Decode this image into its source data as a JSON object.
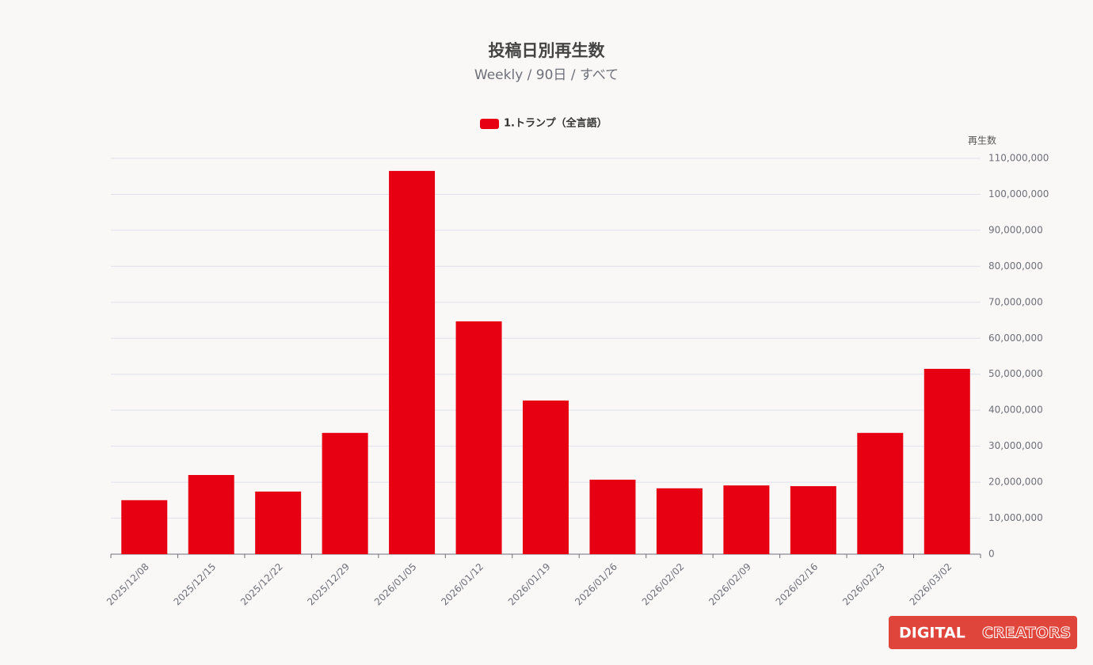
{
  "chart_data": {
    "type": "bar",
    "title": "投稿日別再生数",
    "subtitle": "Weekly / 90日 / すべて",
    "y_axis_label": "再生数",
    "categories": [
      "2025/12/08",
      "2025/12/15",
      "2025/12/22",
      "2025/12/29",
      "2026/01/05",
      "2026/01/12",
      "2026/01/19",
      "2026/01/26",
      "2026/02/02",
      "2026/02/09",
      "2026/02/16",
      "2026/02/23",
      "2026/03/02"
    ],
    "series": [
      {
        "name": "1.トランプ（全言語）",
        "color": "#e60012",
        "values": [
          15000000,
          22000000,
          17400000,
          33700000,
          106500000,
          64700000,
          42700000,
          20700000,
          18300000,
          19100000,
          18900000,
          33700000,
          51500000
        ]
      }
    ],
    "ylim": [
      0,
      110000000
    ],
    "yticks": [
      0,
      {
        "value": 10000000,
        "label": "10,000,000"
      },
      {
        "value": 20000000,
        "label": "20,000,000"
      },
      {
        "value": 30000000,
        "label": "30,000,000"
      },
      {
        "value": 40000000,
        "label": "40,000,000"
      },
      {
        "value": 50000000,
        "label": "50,000,000"
      },
      {
        "value": 60000000,
        "label": "60,000,000"
      },
      {
        "value": 70000000,
        "label": "70,000,000"
      },
      {
        "value": 80000000,
        "label": "80,000,000"
      },
      {
        "value": 90000000,
        "label": "90,000,000"
      },
      {
        "value": 100000000,
        "label": "100,000,000"
      },
      {
        "value": 110000000,
        "label": "110,000,000"
      }
    ],
    "y_axis_side": "right",
    "grid": true,
    "legend": "top"
  },
  "logo": {
    "word1": "DIGITAL",
    "word2": "CREATORS"
  }
}
